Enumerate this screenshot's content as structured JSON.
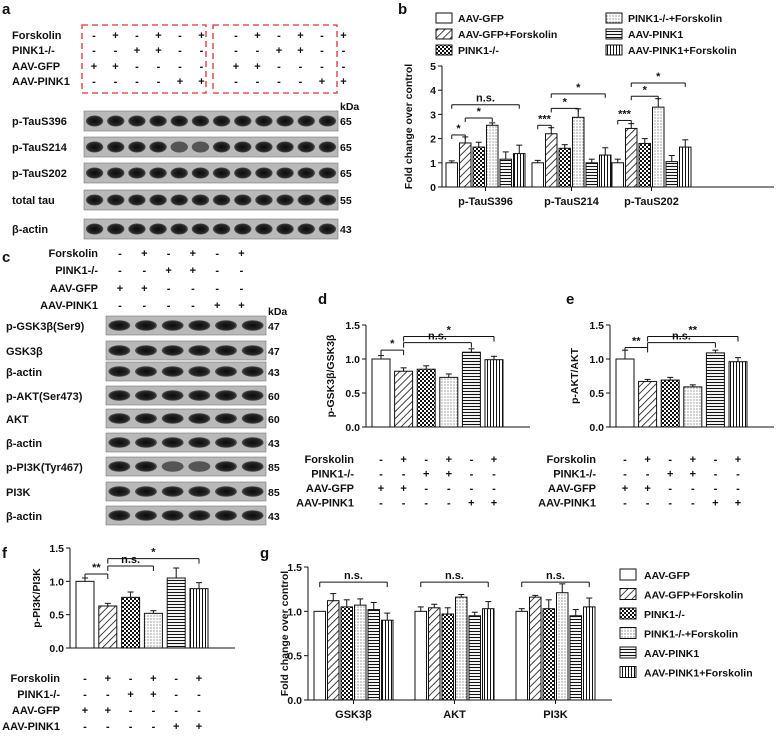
{
  "panel_labels": [
    "a",
    "b",
    "c",
    "d",
    "e",
    "f",
    "g"
  ],
  "kda_unit": "kDa",
  "conditions": {
    "row_labels": [
      "Forskolin",
      "PINK1-/-",
      "AAV-GFP",
      "AAV-PINK1"
    ],
    "signs": [
      [
        "-",
        "+",
        "-",
        "+",
        "-",
        "+"
      ],
      [
        "-",
        "-",
        "+",
        "+",
        "-",
        "-"
      ],
      [
        "+",
        "+",
        "-",
        "-",
        "-",
        "-"
      ],
      [
        "-",
        "-",
        "-",
        "-",
        "+",
        "+"
      ]
    ]
  },
  "blot_a": [
    {
      "label": "p-TauS396",
      "kda": "65"
    },
    {
      "label": "p-TauS214",
      "kda": "65"
    },
    {
      "label": "p-TauS202",
      "kda": "65"
    },
    {
      "label": "total tau",
      "kda": "55"
    },
    {
      "label": "β-actin",
      "kda": "43"
    }
  ],
  "blot_c": [
    {
      "label": "p-GSK3β(Ser9)",
      "kda": "47"
    },
    {
      "label": "GSK3β",
      "kda": "47"
    },
    {
      "label": "β-actin",
      "kda": "43"
    },
    {
      "label": "p-AKT(Ser473)",
      "kda": "60"
    },
    {
      "label": "AKT",
      "kda": "60"
    },
    {
      "label": "β-actin",
      "kda": "43"
    },
    {
      "label": "p-PI3K(Tyr467)",
      "kda": "85"
    },
    {
      "label": "PI3K",
      "kda": "85"
    },
    {
      "label": "β-actin",
      "kda": "43"
    }
  ],
  "series_names": [
    "AAV-GFP",
    "AAV-GFP+Forskolin",
    "PINK1-/-",
    "PINK1-/-+Forskolin",
    "AAV-PINK1",
    "AAV-PINK1+Forskolin"
  ],
  "chart_data": [
    {
      "panel": "b",
      "type": "bar",
      "categories": [
        "p-TauS396",
        "p-TauS214",
        "p-TauS202"
      ],
      "ylabel": "Fold change over control",
      "ylim": [
        0,
        5
      ],
      "yticks": [
        "0",
        "1",
        "2",
        "3",
        "4",
        "5"
      ],
      "series": [
        {
          "name": "AAV-GFP",
          "values": [
            1.0,
            1.0,
            1.0
          ],
          "errors": [
            0.08,
            0.1,
            0.15
          ]
        },
        {
          "name": "AAV-GFP+Forskolin",
          "values": [
            1.82,
            2.2,
            2.42
          ],
          "errors": [
            0.25,
            0.25,
            0.2
          ]
        },
        {
          "name": "PINK1-/-",
          "values": [
            1.65,
            1.6,
            1.8
          ],
          "errors": [
            0.2,
            0.15,
            0.2
          ]
        },
        {
          "name": "PINK1-/-+Forskolin",
          "values": [
            2.55,
            2.88,
            3.3
          ],
          "errors": [
            0.1,
            0.35,
            0.35
          ]
        },
        {
          "name": "AAV-PINK1",
          "values": [
            1.15,
            1.0,
            1.05
          ],
          "errors": [
            0.3,
            0.15,
            0.25
          ]
        },
        {
          "name": "AAV-PINK1+Forskolin",
          "values": [
            1.38,
            1.32,
            1.65
          ],
          "errors": [
            0.35,
            0.3,
            0.3
          ]
        }
      ],
      "significance": [
        "*",
        "*",
        "n.s.",
        "***",
        "*",
        "*",
        "***",
        "*",
        "*"
      ],
      "legend_position": "top"
    },
    {
      "panel": "d",
      "type": "bar",
      "ylabel": "p-GSK3β/GSK3β",
      "ylim": [
        0,
        1.5
      ],
      "yticks": [
        "0.0",
        "0.5",
        "1.0",
        "1.5"
      ],
      "values": [
        1.0,
        0.82,
        0.85,
        0.73,
        1.1,
        0.99
      ],
      "errors": [
        0.05,
        0.05,
        0.05,
        0.05,
        0.05,
        0.05
      ],
      "significance": [
        "*",
        "n.s.",
        "*"
      ]
    },
    {
      "panel": "e",
      "type": "bar",
      "ylabel": "p-AKT/AKT",
      "ylim": [
        0,
        1.5
      ],
      "yticks": [
        "0.0",
        "0.5",
        "1.0",
        "1.5"
      ],
      "values": [
        1.0,
        0.67,
        0.69,
        0.59,
        1.09,
        0.96
      ],
      "errors": [
        0.13,
        0.03,
        0.04,
        0.03,
        0.04,
        0.06
      ],
      "significance": [
        "**",
        "n.s.",
        "**"
      ]
    },
    {
      "panel": "f",
      "type": "bar",
      "ylabel": "p-PI3K/PI3K",
      "ylim": [
        0,
        1.5
      ],
      "yticks": [
        "0.0",
        "0.5",
        "1.0",
        "1.5"
      ],
      "values": [
        1.0,
        0.63,
        0.76,
        0.52,
        1.05,
        0.89
      ],
      "errors": [
        0.05,
        0.04,
        0.08,
        0.04,
        0.15,
        0.09
      ],
      "significance": [
        "**",
        "n.s.",
        "*"
      ]
    },
    {
      "panel": "g",
      "type": "bar",
      "categories": [
        "GSK3β",
        "AKT",
        "PI3K"
      ],
      "ylabel": "Fold change over control",
      "ylim": [
        0,
        1.5
      ],
      "yticks": [
        "0.0",
        "0.5",
        "1.0",
        "1.5"
      ],
      "series": [
        {
          "name": "AAV-GFP",
          "values": [
            1.0,
            1.0,
            1.0
          ],
          "errors": [
            0.0,
            0.05,
            0.03
          ]
        },
        {
          "name": "AAV-GFP+Forskolin",
          "values": [
            1.12,
            1.04,
            1.16
          ],
          "errors": [
            0.08,
            0.04,
            0.02
          ]
        },
        {
          "name": "PINK1-/-",
          "values": [
            1.05,
            0.97,
            1.03
          ],
          "errors": [
            0.08,
            0.07,
            0.1
          ]
        },
        {
          "name": "PINK1-/-+Forskolin",
          "values": [
            1.07,
            1.16,
            1.21
          ],
          "errors": [
            0.07,
            0.03,
            0.1
          ]
        },
        {
          "name": "AAV-PINK1",
          "values": [
            1.02,
            0.95,
            0.95
          ],
          "errors": [
            0.08,
            0.04,
            0.07
          ]
        },
        {
          "name": "AAV-PINK1+Forskolin",
          "values": [
            0.9,
            1.03,
            1.05
          ],
          "errors": [
            0.08,
            0.08,
            0.1
          ]
        }
      ],
      "significance": [
        "n.s.",
        "n.s.",
        "n.s."
      ],
      "legend_position": "right"
    }
  ]
}
